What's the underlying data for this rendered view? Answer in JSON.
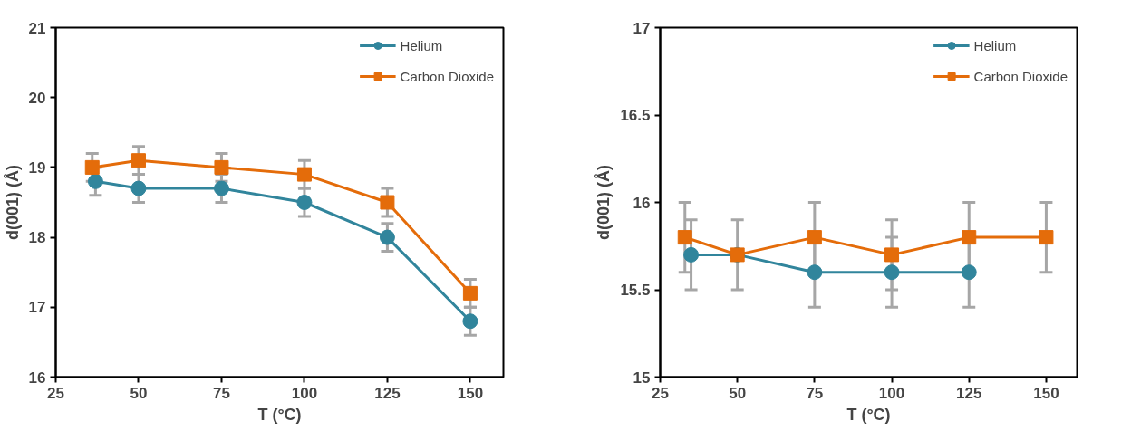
{
  "chart_data": [
    {
      "type": "line",
      "xlabel": "T (°C)",
      "ylabel": "d(001) (Å)",
      "xlim": [
        25,
        160
      ],
      "xticks": [
        25,
        50,
        75,
        100,
        125,
        150
      ],
      "ylim": [
        16,
        21
      ],
      "yticks": [
        16,
        17,
        18,
        19,
        20,
        21
      ],
      "grid": false,
      "legend": "top right",
      "line_style": "solid",
      "series": [
        {
          "name": "Helium",
          "color": "#31859c",
          "marker": "circle",
          "x": [
            37,
            50,
            75,
            100,
            125,
            150
          ],
          "values": [
            18.8,
            18.7,
            18.7,
            18.5,
            18.0,
            16.8
          ],
          "errors": [
            0.2,
            0.2,
            0.2,
            0.2,
            0.2,
            0.2
          ]
        },
        {
          "name": "Carbon Dioxide",
          "color": "#e46c0a",
          "marker": "square",
          "x": [
            36,
            50,
            75,
            100,
            125,
            150
          ],
          "values": [
            19.0,
            19.1,
            19.0,
            18.9,
            18.5,
            17.2
          ],
          "errors": [
            0.2,
            0.2,
            0.2,
            0.2,
            0.2,
            0.2
          ]
        }
      ]
    },
    {
      "type": "line",
      "xlabel": "T (°C)",
      "ylabel": "d(001) (Å)",
      "xlim": [
        25,
        160
      ],
      "xticks": [
        25,
        50,
        75,
        100,
        125,
        150
      ],
      "ylim": [
        15,
        17
      ],
      "yticks": [
        15,
        15.5,
        16,
        16.5,
        17
      ],
      "grid": false,
      "legend": "top right",
      "line_style": "solid",
      "series": [
        {
          "name": "Helium",
          "color": "#31859c",
          "marker": "circle",
          "x": [
            35,
            50,
            75,
            100,
            125
          ],
          "values": [
            15.7,
            15.7,
            15.6,
            15.6,
            15.6
          ],
          "errors": [
            0.2,
            0.2,
            0.2,
            0.2,
            0.2
          ]
        },
        {
          "name": "Carbon Dioxide",
          "color": "#e46c0a",
          "marker": "square",
          "x": [
            33,
            50,
            75,
            100,
            125,
            150
          ],
          "values": [
            15.8,
            15.7,
            15.8,
            15.7,
            15.8,
            15.8
          ],
          "errors": [
            0.2,
            0.2,
            0.2,
            0.2,
            0.2,
            0.2
          ]
        }
      ]
    }
  ]
}
